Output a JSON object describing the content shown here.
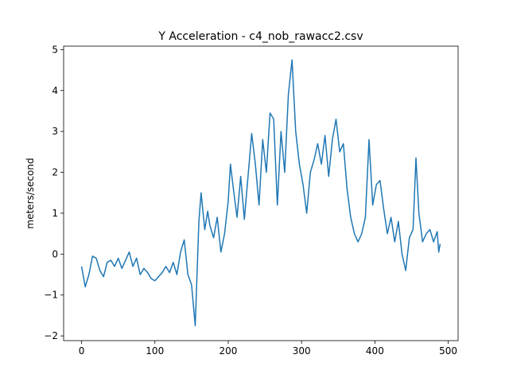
{
  "chart_data": {
    "type": "line",
    "title": "Y Acceleration - c4_nob_rawacc2.csv",
    "y_label": "meters/second",
    "x": [
      0,
      5,
      10,
      15,
      20,
      25,
      30,
      35,
      40,
      45,
      50,
      55,
      60,
      65,
      70,
      75,
      80,
      85,
      90,
      95,
      100,
      105,
      110,
      115,
      120,
      125,
      130,
      135,
      140,
      145,
      150,
      155,
      160,
      163,
      168,
      172,
      175,
      180,
      185,
      190,
      195,
      200,
      203,
      207,
      212,
      217,
      222,
      227,
      232,
      237,
      242,
      247,
      252,
      257,
      262,
      267,
      272,
      277,
      282,
      287,
      292,
      297,
      302,
      307,
      312,
      317,
      322,
      327,
      332,
      337,
      342,
      347,
      352,
      357,
      362,
      367,
      372,
      377,
      382,
      387,
      392,
      397,
      402,
      407,
      412,
      417,
      422,
      427,
      432,
      437,
      442,
      447,
      452,
      456,
      460,
      465,
      470,
      475,
      480,
      485,
      487,
      489
    ],
    "series": [
      {
        "name": "Y",
        "color": "#1f77b4",
        "values": [
          -0.3,
          -0.8,
          -0.5,
          -0.05,
          -0.1,
          -0.4,
          -0.55,
          -0.2,
          -0.15,
          -0.3,
          -0.1,
          -0.35,
          -0.15,
          0.05,
          -0.3,
          -0.1,
          -0.5,
          -0.35,
          -0.45,
          -0.6,
          -0.65,
          -0.55,
          -0.45,
          -0.3,
          -0.45,
          -0.2,
          -0.5,
          0.05,
          0.35,
          -0.5,
          -0.75,
          -1.75,
          0.8,
          1.5,
          0.6,
          1.05,
          0.7,
          0.4,
          0.9,
          0.05,
          0.5,
          1.3,
          2.2,
          1.6,
          0.9,
          1.9,
          0.85,
          1.9,
          2.95,
          2.2,
          1.2,
          2.8,
          2.0,
          3.45,
          3.3,
          1.2,
          3.0,
          2.0,
          3.9,
          4.75,
          3.0,
          2.2,
          1.7,
          1.0,
          2.0,
          2.3,
          2.7,
          2.2,
          2.9,
          1.9,
          2.8,
          3.3,
          2.5,
          2.7,
          1.6,
          0.9,
          0.5,
          0.3,
          0.5,
          0.9,
          2.8,
          1.2,
          1.7,
          1.8,
          1.1,
          0.5,
          0.9,
          0.3,
          0.8,
          0.0,
          -0.4,
          0.4,
          0.6,
          2.35,
          1.0,
          0.3,
          0.5,
          0.6,
          0.3,
          0.55,
          0.05,
          0.25
        ]
      }
    ],
    "xlim": [
      -24.45,
      513.45
    ],
    "ylim": [
      -2.115,
      5.085
    ],
    "xticks": [
      0,
      100,
      200,
      300,
      400,
      500
    ],
    "yticks": [
      {
        "value": -2,
        "label": "−2"
      },
      {
        "value": -1,
        "label": "−1"
      },
      0,
      1,
      2,
      3,
      4,
      5
    ]
  }
}
